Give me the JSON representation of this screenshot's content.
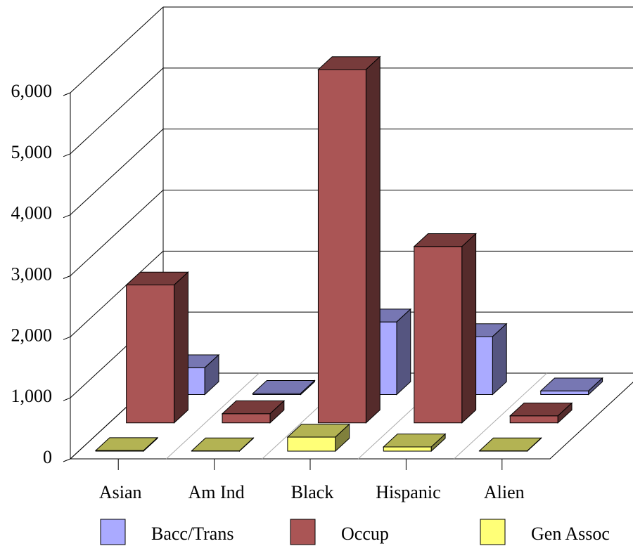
{
  "chart_data": {
    "type": "bar3d",
    "categories": [
      "Asian",
      "Am Ind",
      "Black",
      "Hispanic",
      "Alien"
    ],
    "series": [
      {
        "name": "Bacc/Trans",
        "color": "#aaaaff",
        "values": [
          440,
          20,
          1190,
          950,
          60
        ]
      },
      {
        "name": "Occup",
        "color": "#aa5555",
        "values": [
          2260,
          150,
          5790,
          2890,
          115
        ]
      },
      {
        "name": "Gen Assoc",
        "color": "#ffff77",
        "values": [
          10,
          5,
          230,
          70,
          5
        ]
      }
    ],
    "ylim": [
      0,
      6000
    ],
    "yticks": [
      0,
      {
        "value": 1000,
        "label": "1,000"
      },
      {
        "value": 2000,
        "label": "2,000"
      },
      {
        "value": 3000,
        "label": "3,000"
      },
      {
        "value": 4000,
        "label": "4,000"
      },
      {
        "value": 5000,
        "label": "5,000"
      },
      {
        "value": 6000,
        "label": "6,000"
      }
    ],
    "grid": true
  }
}
